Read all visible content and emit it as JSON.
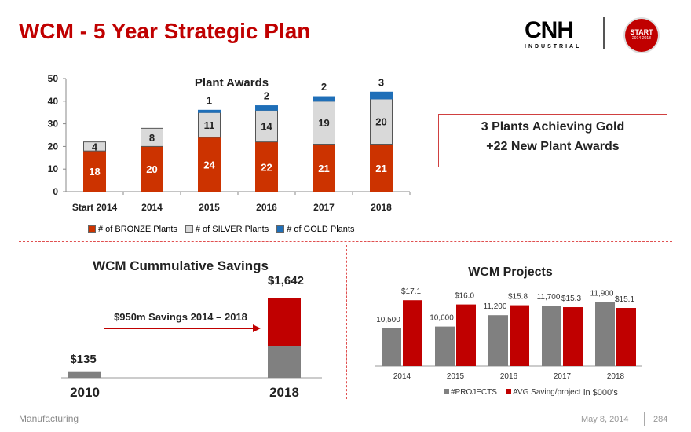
{
  "title": "WCM - 5 Year Strategic Plan",
  "brand": {
    "logo_text": "CNH",
    "logo_sub": "INDUSTRIAL",
    "badge_text": "START",
    "badge_sub": "2014-2018",
    "brand_color": "#c00000"
  },
  "callout": {
    "line1": "3 Plants Achieving Gold",
    "line2": "+22 New Plant Awards"
  },
  "footer": {
    "left": "Manufacturing",
    "date": "May 8, 2014",
    "page": "284"
  },
  "chart_data": [
    {
      "type": "bar",
      "stacked": true,
      "title": "Plant  Awards",
      "categories": [
        "Start 2014",
        "2014",
        "2015",
        "2016",
        "2017",
        "2018"
      ],
      "ylim": [
        0,
        50
      ],
      "yticks": [
        0,
        10,
        20,
        30,
        40,
        50
      ],
      "series": [
        {
          "name": "# of BRONZE  Plants",
          "color": "#cc3300",
          "values": [
            18,
            20,
            24,
            22,
            21,
            21
          ]
        },
        {
          "name": "# of SILVER Plants",
          "color": "#d9d9d9",
          "values": [
            4,
            8,
            11,
            14,
            19,
            20
          ]
        },
        {
          "name": "# of GOLD  Plants",
          "color": "#1f6fb8",
          "values": [
            0,
            0,
            1,
            2,
            2,
            3
          ]
        }
      ],
      "legend": "bottom"
    },
    {
      "type": "bar",
      "stacked": true,
      "title": "WCM Cummulative Savings",
      "categories": [
        "2010",
        "2018"
      ],
      "totals": [
        "$135",
        "$1,642"
      ],
      "series": [
        {
          "name": "base",
          "color": "#808080",
          "values": [
            135,
            650
          ]
        },
        {
          "name": "added",
          "color": "#c00000",
          "values": [
            0,
            992
          ]
        }
      ],
      "annotation": "$950m Savings 2014 – 2018"
    },
    {
      "type": "bar",
      "title": "WCM Projects",
      "categories": [
        "2014",
        "2015",
        "2016",
        "2017",
        "2018"
      ],
      "series": [
        {
          "name": "#PROJECTS",
          "color": "#808080",
          "values": [
            10500,
            10600,
            11200,
            11700,
            11900
          ],
          "labels": [
            "10,500",
            "10,600",
            "11,200",
            "11,700",
            "11,900"
          ]
        },
        {
          "name": "AVG Saving/project",
          "color": "#c00000",
          "values": [
            17.1,
            16.0,
            15.8,
            15.3,
            15.1
          ],
          "labels": [
            "$17.1",
            "$16.0",
            "$15.8",
            "$15.3",
            "$15.1"
          ]
        }
      ],
      "unit_note": "in $000’s",
      "legend": "bottom"
    }
  ]
}
